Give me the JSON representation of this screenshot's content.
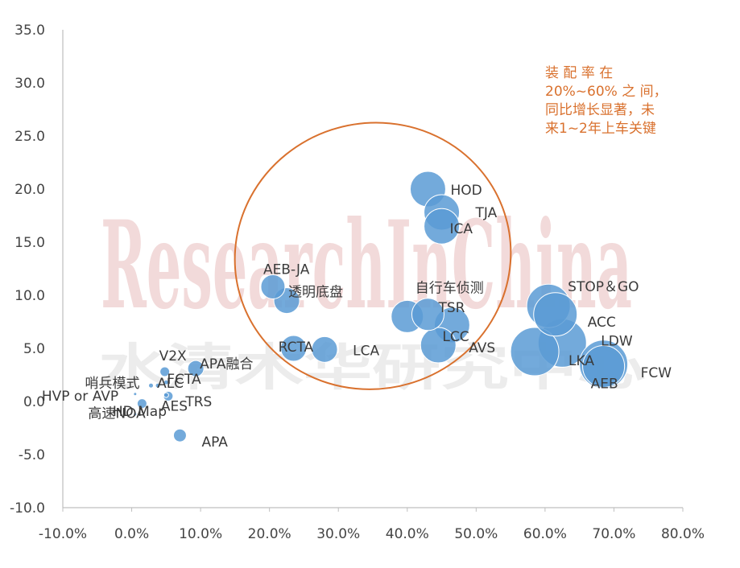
{
  "chart_data": {
    "type": "scatter",
    "title": "",
    "xlabel": "",
    "ylabel": "",
    "xlim": [
      -0.1,
      0.8
    ],
    "ylim": [
      -10,
      35
    ],
    "x_ticks": [
      "-10.0%",
      "0.0%",
      "10.0%",
      "20.0%",
      "30.0%",
      "40.0%",
      "50.0%",
      "60.0%",
      "70.0%",
      "80.0%"
    ],
    "y_ticks": [
      "-10.0",
      "-5.0",
      "0.0",
      "5.0",
      "10.0",
      "15.0",
      "20.0",
      "25.0",
      "30.0",
      "35.0"
    ],
    "bubble_color": "#5b9bd5",
    "ellipse_color": "#d9712e",
    "points": [
      {
        "label": "HOD",
        "x": 0.43,
        "y": 20.0,
        "size": 22
      },
      {
        "label": "TJA",
        "x": 0.45,
        "y": 17.8,
        "size": 22
      },
      {
        "label": "ICA",
        "x": 0.45,
        "y": 16.5,
        "size": 22
      },
      {
        "label": "AEB-JA",
        "x": 0.205,
        "y": 10.8,
        "size": 15
      },
      {
        "label": "透明底盘",
        "x": 0.225,
        "y": 9.5,
        "size": 16
      },
      {
        "label": "自行车侦测",
        "x": 0.4,
        "y": 8.0,
        "size": 20
      },
      {
        "label": "TSR",
        "x": 0.43,
        "y": 8.2,
        "size": 20
      },
      {
        "label": "LCC",
        "x": 0.465,
        "y": 7.2,
        "size": 22
      },
      {
        "label": "AVS",
        "x": 0.445,
        "y": 5.3,
        "size": 22
      },
      {
        "label": "RCTA",
        "x": 0.235,
        "y": 5.0,
        "size": 16
      },
      {
        "label": "LCA",
        "x": 0.28,
        "y": 4.9,
        "size": 16
      },
      {
        "label": "STOP＆GO",
        "x": 0.605,
        "y": 9.0,
        "size": 27
      },
      {
        "label": "ACC",
        "x": 0.615,
        "y": 8.2,
        "size": 27
      },
      {
        "label": "LDW",
        "x": 0.625,
        "y": 5.5,
        "size": 30
      },
      {
        "label": "LKA",
        "x": 0.585,
        "y": 4.7,
        "size": 30
      },
      {
        "label": "FCW",
        "x": 0.685,
        "y": 3.5,
        "size": 30
      },
      {
        "label": "AEB",
        "x": 0.685,
        "y": 3.3,
        "size": 26
      },
      {
        "label": "V2X",
        "x": 0.048,
        "y": 2.8,
        "size": 6
      },
      {
        "label": "APA融合",
        "x": 0.093,
        "y": 3.1,
        "size": 10
      },
      {
        "label": "哨兵模式",
        "x": 0.028,
        "y": 1.5,
        "size": 3
      },
      {
        "label": "FCTA",
        "x": 0.05,
        "y": 1.8,
        "size": 3
      },
      {
        "label": "ALC",
        "x": 0.038,
        "y": 1.5,
        "size": 3
      },
      {
        "label": "HVP or AVP",
        "x": 0.005,
        "y": 0.7,
        "size": 2
      },
      {
        "label": "AES",
        "x": 0.053,
        "y": 0.5,
        "size": 6
      },
      {
        "label": "TRS",
        "x": 0.05,
        "y": 0.6,
        "size": 3
      },
      {
        "label": "高速NOA",
        "x": 0.015,
        "y": -0.2,
        "size": 6
      },
      {
        "label": "HD Map",
        "x": 0.005,
        "y": -1.2,
        "size": 2
      },
      {
        "label": "APA",
        "x": 0.07,
        "y": -3.2,
        "size": 8
      }
    ],
    "annotation_lines": [
      "装 配 率 在",
      "20%~60% 之 间，",
      "同比增长显著，未",
      "来1~2年上车关键"
    ],
    "watermark": [
      "ResearchInChina",
      "水清木华研究中心"
    ]
  }
}
